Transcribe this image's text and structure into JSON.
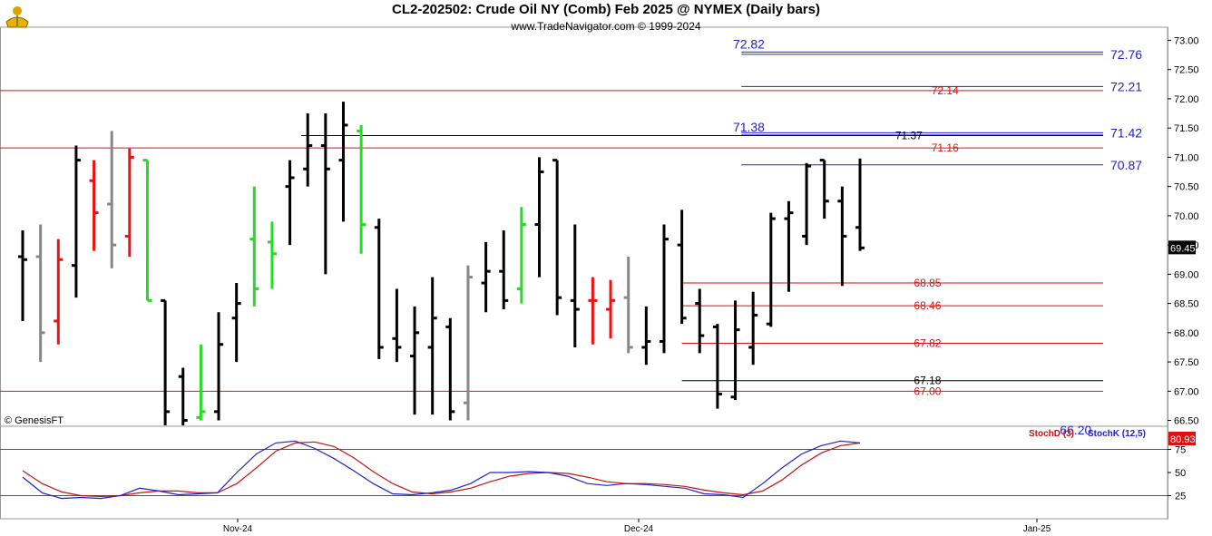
{
  "header": {
    "title": "CL2-202502:  Crude Oil NY (Comb) Feb 2025 @ NYMEX  (Daily bars)",
    "subtitle": "www.TradeNavigator.com © 1999-2024"
  },
  "credit": "© GenesisFT",
  "indicators": {
    "stoch_d_label": "StochD (3)",
    "stoch_k_label": "StochK (12,5)"
  },
  "colors": {
    "up": "#22dd22",
    "down": "#ee1111",
    "neutral": "#888888",
    "black": "#000000",
    "level_red": "#dd1111",
    "level_blue": "#2222cc",
    "stochK": "#2222cc",
    "stochD": "#cc1111"
  },
  "chart_data": {
    "type": "ohlc",
    "price_axis": {
      "min": 66.4,
      "max": 73.1,
      "ticks": [
        "73.00",
        "72.50",
        "72.00",
        "71.50",
        "71.00",
        "70.50",
        "70.00",
        "69.50",
        "69.00",
        "68.50",
        "68.00",
        "67.50",
        "67.00",
        "66.50"
      ]
    },
    "last_price": "69.45",
    "x_labels": [
      "Nov-24",
      "Dec-24",
      "Jan-25"
    ],
    "bars": [
      {
        "o": 69.3,
        "h": 69.75,
        "l": 68.2,
        "c": 69.25,
        "col": "black"
      },
      {
        "o": 69.3,
        "h": 69.85,
        "l": 67.5,
        "c": 68.0,
        "col": "neutral"
      },
      {
        "o": 68.2,
        "h": 69.6,
        "l": 67.8,
        "c": 69.25,
        "col": "down"
      },
      {
        "o": 69.15,
        "h": 71.2,
        "l": 68.6,
        "c": 70.95,
        "col": "black"
      },
      {
        "o": 70.6,
        "h": 70.95,
        "l": 69.4,
        "c": 70.05,
        "col": "down"
      },
      {
        "o": 70.2,
        "h": 71.45,
        "l": 69.1,
        "c": 69.5,
        "col": "neutral"
      },
      {
        "o": 69.65,
        "h": 71.15,
        "l": 69.3,
        "c": 71.0,
        "col": "down"
      },
      {
        "o": 70.95,
        "h": 70.95,
        "l": 68.55,
        "c": 68.55,
        "col": "up"
      },
      {
        "o": 68.55,
        "h": 68.55,
        "l": 66.4,
        "c": 66.65,
        "col": "black"
      },
      {
        "o": 67.25,
        "h": 67.4,
        "l": 66.4,
        "c": 66.5,
        "col": "black"
      },
      {
        "o": 66.55,
        "h": 67.8,
        "l": 66.5,
        "c": 66.65,
        "col": "up"
      },
      {
        "o": 66.65,
        "h": 68.35,
        "l": 66.5,
        "c": 67.8,
        "col": "black"
      },
      {
        "o": 68.25,
        "h": 68.85,
        "l": 67.5,
        "c": 68.5,
        "col": "black"
      },
      {
        "o": 69.6,
        "h": 70.5,
        "l": 68.45,
        "c": 68.75,
        "col": "up"
      },
      {
        "o": 69.55,
        "h": 69.9,
        "l": 68.75,
        "c": 69.35,
        "col": "up"
      },
      {
        "o": 70.5,
        "h": 70.95,
        "l": 69.5,
        "c": 70.65,
        "col": "black"
      },
      {
        "o": 70.8,
        "h": 71.75,
        "l": 70.5,
        "c": 71.2,
        "col": "black"
      },
      {
        "o": 71.2,
        "h": 71.75,
        "l": 69.0,
        "c": 70.8,
        "col": "black"
      },
      {
        "o": 70.95,
        "h": 71.95,
        "l": 69.9,
        "c": 71.55,
        "col": "black"
      },
      {
        "o": 71.45,
        "h": 71.55,
        "l": 69.35,
        "c": 69.85,
        "col": "up"
      },
      {
        "o": 69.8,
        "h": 69.95,
        "l": 67.55,
        "c": 67.75,
        "col": "black"
      },
      {
        "o": 67.9,
        "h": 68.75,
        "l": 67.5,
        "c": 67.75,
        "col": "black"
      },
      {
        "o": 67.6,
        "h": 68.45,
        "l": 66.6,
        "c": 68.0,
        "col": "black"
      },
      {
        "o": 67.75,
        "h": 68.95,
        "l": 66.6,
        "c": 68.25,
        "col": "black"
      },
      {
        "o": 68.1,
        "h": 68.25,
        "l": 66.5,
        "c": 66.65,
        "col": "black"
      },
      {
        "o": 66.8,
        "h": 69.15,
        "l": 66.5,
        "c": 68.95,
        "col": "neutral"
      },
      {
        "o": 68.85,
        "h": 69.55,
        "l": 68.35,
        "c": 69.05,
        "col": "black"
      },
      {
        "o": 69.05,
        "h": 69.75,
        "l": 68.4,
        "c": 68.55,
        "col": "black"
      },
      {
        "o": 68.75,
        "h": 70.15,
        "l": 68.5,
        "c": 69.85,
        "col": "up"
      },
      {
        "o": 69.85,
        "h": 71.0,
        "l": 68.95,
        "c": 70.75,
        "col": "black"
      },
      {
        "o": 70.95,
        "h": 70.95,
        "l": 68.3,
        "c": 68.6,
        "col": "black"
      },
      {
        "o": 68.55,
        "h": 69.85,
        "l": 67.75,
        "c": 68.4,
        "col": "black"
      },
      {
        "o": 68.55,
        "h": 68.95,
        "l": 67.8,
        "c": 68.55,
        "col": "down"
      },
      {
        "o": 68.4,
        "h": 68.9,
        "l": 67.9,
        "c": 68.55,
        "col": "down"
      },
      {
        "o": 68.6,
        "h": 69.3,
        "l": 67.65,
        "c": 67.75,
        "col": "neutral"
      },
      {
        "o": 67.75,
        "h": 68.45,
        "l": 67.45,
        "c": 67.85,
        "col": "black"
      },
      {
        "o": 67.85,
        "h": 69.85,
        "l": 67.65,
        "c": 69.6,
        "col": "black"
      },
      {
        "o": 69.5,
        "h": 70.1,
        "l": 68.15,
        "c": 68.25,
        "col": "black"
      },
      {
        "o": 68.5,
        "h": 68.75,
        "l": 67.65,
        "c": 67.95,
        "col": "black"
      },
      {
        "o": 68.1,
        "h": 68.15,
        "l": 66.7,
        "c": 66.95,
        "col": "black"
      },
      {
        "o": 66.9,
        "h": 68.55,
        "l": 66.85,
        "c": 68.05,
        "col": "black"
      },
      {
        "o": 67.75,
        "h": 68.7,
        "l": 67.45,
        "c": 68.3,
        "col": "black"
      },
      {
        "o": 68.15,
        "h": 70.05,
        "l": 68.1,
        "c": 69.95,
        "col": "black"
      },
      {
        "o": 69.95,
        "h": 70.25,
        "l": 68.7,
        "c": 70.05,
        "col": "black"
      },
      {
        "o": 69.65,
        "h": 70.9,
        "l": 69.5,
        "c": 70.85,
        "col": "black"
      },
      {
        "o": 70.95,
        "h": 70.95,
        "l": 69.95,
        "c": 70.25,
        "col": "black"
      },
      {
        "o": 70.25,
        "h": 70.5,
        "l": 68.8,
        "c": 69.65,
        "col": "black"
      },
      {
        "o": 69.8,
        "h": 70.98,
        "l": 69.4,
        "c": 69.45,
        "col": "black"
      }
    ],
    "levels": [
      {
        "label": "72.82",
        "value": 72.8,
        "color": "blue",
        "x0": 0.635,
        "lx": 0.62
      },
      {
        "label": "72.76",
        "value": 72.76,
        "color": "blue",
        "x0": 0.635,
        "right": true
      },
      {
        "label": "72.21",
        "value": 72.21,
        "color": "blue",
        "x0": 0.635,
        "right": true
      },
      {
        "label": "72.14",
        "value": 72.14,
        "color": "red",
        "x0": 0.0,
        "lx": 0.79
      },
      {
        "label": "71.42",
        "value": 71.42,
        "color": "blue",
        "x0": 0.635,
        "right": true
      },
      {
        "label": "71.38",
        "value": 71.38,
        "color": "blue",
        "x0": 0.635,
        "lx": 0.62
      },
      {
        "label": "71.37",
        "value": 71.37,
        "color": "black",
        "x0": 0.258,
        "lx": 0.759
      },
      {
        "label": "71.16",
        "value": 71.16,
        "color": "red",
        "x0": 0.0,
        "lx": 0.79
      },
      {
        "label": "70.87",
        "value": 70.87,
        "color": "blue",
        "x0": 0.635,
        "right": true
      },
      {
        "label": "68.85",
        "value": 68.85,
        "color": "red",
        "x0": 0.584,
        "lx": 0.775
      },
      {
        "label": "68.46",
        "value": 68.46,
        "color": "red",
        "x0": 0.584,
        "lx": 0.775
      },
      {
        "label": "67.82",
        "value": 67.82,
        "color": "red",
        "x0": 0.584,
        "lx": 0.775
      },
      {
        "label": "67.18",
        "value": 67.18,
        "color": "black",
        "x0": 0.584,
        "lx": 0.775
      },
      {
        "label": "67.00",
        "value": 67.0,
        "color": "red",
        "x0": 0.0,
        "lx": 0.775
      },
      {
        "label": "66.20",
        "value": 66.2,
        "color": "blue",
        "x0": 1.0,
        "lx": 0.9
      }
    ],
    "stochastic": {
      "ticks": [
        "75",
        "50",
        "25"
      ],
      "value_label": "80.93",
      "K": [
        45,
        28,
        22,
        23,
        22,
        25,
        33,
        30,
        26,
        27,
        28,
        50,
        70,
        82,
        84,
        76,
        65,
        52,
        38,
        27,
        26,
        28,
        31,
        38,
        50,
        50,
        51,
        50,
        46,
        38,
        36,
        38,
        37,
        35,
        33,
        27,
        26,
        23,
        38,
        55,
        70,
        79,
        84,
        82
      ],
      "D": [
        52,
        38,
        29,
        25,
        24,
        25,
        28,
        30,
        30,
        28,
        28,
        38,
        55,
        73,
        82,
        83,
        78,
        66,
        51,
        38,
        29,
        27,
        29,
        33,
        40,
        46,
        49,
        50,
        49,
        45,
        40,
        38,
        38,
        37,
        35,
        31,
        28,
        26,
        30,
        42,
        58,
        71,
        79,
        82
      ]
    }
  }
}
